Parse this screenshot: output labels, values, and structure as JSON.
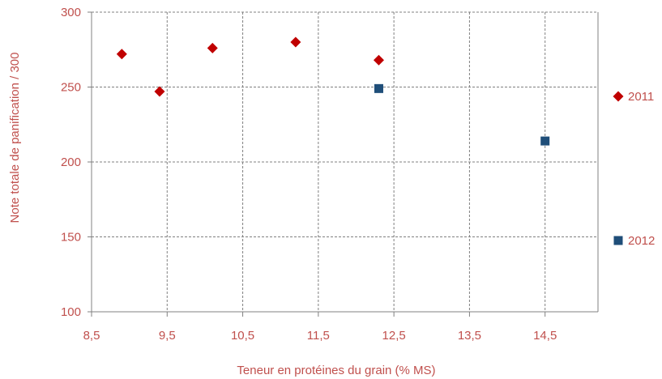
{
  "chart_data": {
    "type": "scatter",
    "xlabel": "Teneur en protéines du grain (% MS)",
    "ylabel": "Note totale de panification / 300",
    "xlim": [
      8.5,
      15.2
    ],
    "ylim": [
      100,
      300
    ],
    "x_ticks": [
      "8,5",
      "9,5",
      "10,5",
      "11,5",
      "12,5",
      "13,5",
      "14,5"
    ],
    "y_ticks": [
      "100",
      "150",
      "200",
      "250",
      "300"
    ],
    "grid": true,
    "legend_position": "right",
    "series": [
      {
        "name": "2011",
        "marker": "diamond",
        "color": "#c00000",
        "points": [
          [
            8.9,
            272
          ],
          [
            9.4,
            247
          ],
          [
            10.1,
            276
          ],
          [
            11.2,
            280
          ],
          [
            12.3,
            268
          ]
        ]
      },
      {
        "name": "2012",
        "marker": "square",
        "color": "#1f4e79",
        "points": [
          [
            12.3,
            249
          ],
          [
            14.5,
            214
          ]
        ]
      }
    ]
  },
  "colors": {
    "text": "#c0504d",
    "axis": "#808080",
    "grid": "#808080"
  }
}
